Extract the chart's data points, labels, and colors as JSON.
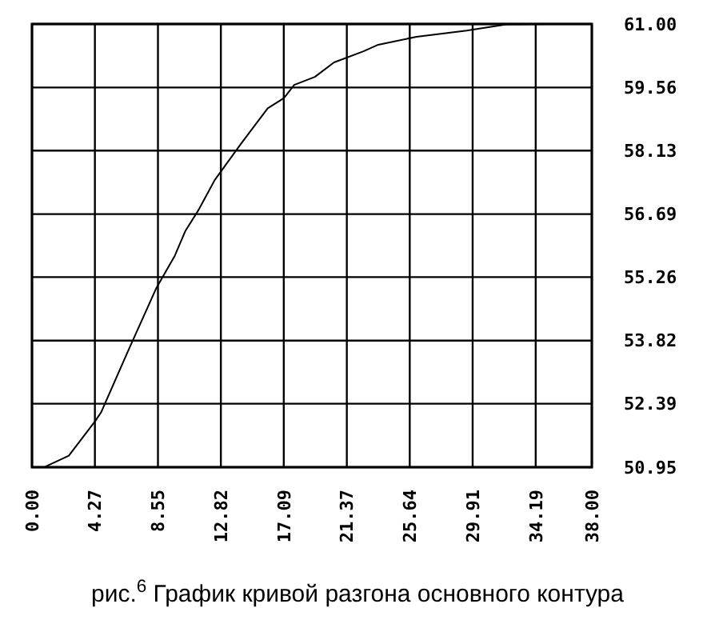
{
  "chart_data": {
    "type": "line",
    "annotations": [
      "рис.$^{6}$ График кривой разгона основного контура"
    ],
    "x": [
      0.9,
      2.5,
      4.3,
      4.7,
      6.5,
      8.45,
      9.7,
      10.4,
      11.3,
      12.4,
      14.2,
      16.0,
      17.1,
      17.8,
      19.2,
      20.5,
      22.5,
      23.5,
      26.1,
      29.5,
      32.2,
      34.9
    ],
    "series": [
      {
        "color": "#000000",
        "values": [
          50.96,
          51.21,
          52.0,
          52.2,
          53.57,
          55.02,
          55.75,
          56.3,
          56.78,
          57.46,
          58.29,
          59.09,
          59.32,
          59.62,
          59.8,
          60.13,
          60.38,
          60.53,
          60.71,
          60.85,
          60.99,
          61.0
        ]
      }
    ],
    "xlim": [
      0,
      38
    ],
    "ylim": [
      50.95,
      61
    ],
    "xticks": [
      {
        "value": 0,
        "label": "0.00"
      },
      {
        "value": 4.27,
        "label": "4.27"
      },
      {
        "value": 8.55,
        "label": "8.55"
      },
      {
        "value": 12.82,
        "label": "12.82"
      },
      {
        "value": 17.09,
        "label": "17.09"
      },
      {
        "value": 21.37,
        "label": "21.37"
      },
      {
        "value": 25.64,
        "label": "25.64"
      },
      {
        "value": 29.91,
        "label": "29.91"
      },
      {
        "value": 34.19,
        "label": "34.19"
      },
      {
        "value": 38,
        "label": "38.00"
      }
    ],
    "yticks": [
      {
        "value": 50.95,
        "label": "50.95"
      },
      {
        "value": 52.39,
        "label": "52.39"
      },
      {
        "value": 53.82,
        "label": "53.82"
      },
      {
        "value": 55.26,
        "label": "55.26"
      },
      {
        "value": 56.69,
        "label": "56.69"
      },
      {
        "value": 58.13,
        "label": "58.13"
      },
      {
        "value": 59.56,
        "label": "59.56"
      },
      {
        "value": 61,
        "label": "61.00"
      }
    ],
    "grid": true
  }
}
